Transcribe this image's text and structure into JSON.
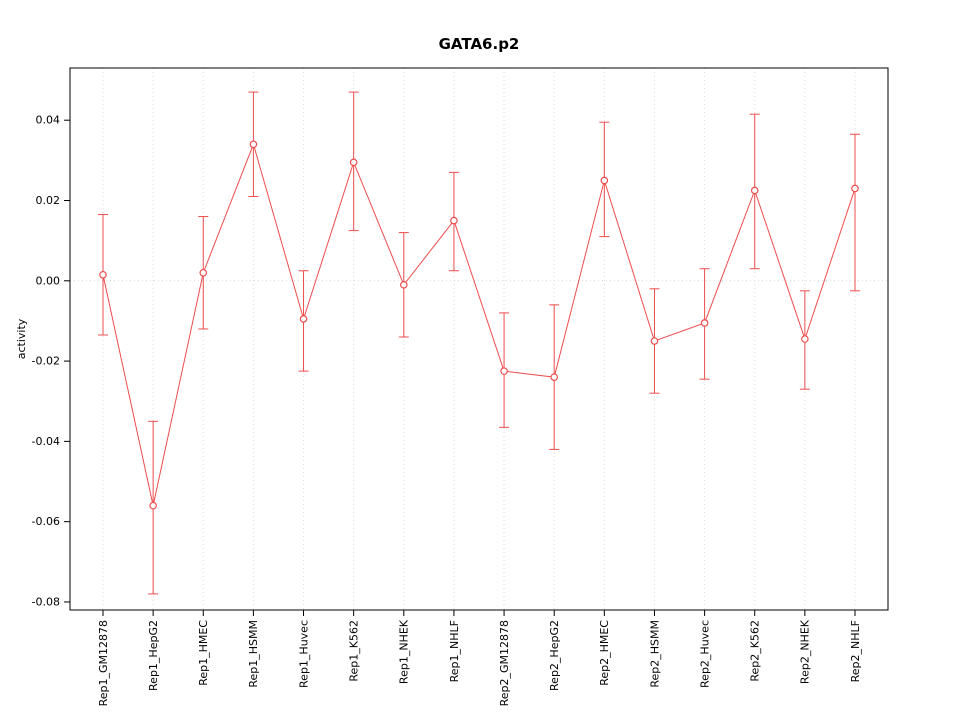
{
  "chart": {
    "title": "GATA6.p2",
    "ylabel": "activity"
  },
  "chart_data": {
    "type": "line",
    "title": "GATA6.p2",
    "xlabel": "",
    "ylabel": "activity",
    "categories": [
      "Rep1_GM12878",
      "Rep1_HepG2",
      "Rep1_HMEC",
      "Rep1_HSMM",
      "Rep1_Huvec",
      "Rep1_K562",
      "Rep1_NHEK",
      "Rep1_NHLF",
      "Rep2_GM12878",
      "Rep2_HepG2",
      "Rep2_HMEC",
      "Rep2_HSMM",
      "Rep2_Huvec",
      "Rep2_K562",
      "Rep2_NHEK",
      "Rep2_NHLF"
    ],
    "values": [
      0.0015,
      -0.056,
      0.002,
      0.034,
      -0.0095,
      0.0295,
      -0.001,
      0.015,
      -0.0225,
      -0.024,
      0.025,
      -0.015,
      -0.0105,
      0.0225,
      -0.0145,
      0.023
    ],
    "error_low": [
      -0.0135,
      -0.078,
      -0.012,
      0.021,
      -0.0225,
      0.0125,
      -0.014,
      0.0025,
      -0.0365,
      -0.042,
      0.011,
      -0.028,
      -0.0245,
      0.003,
      -0.027,
      -0.0025
    ],
    "error_high": [
      0.0165,
      -0.035,
      0.016,
      0.047,
      0.0025,
      0.047,
      0.012,
      0.027,
      -0.008,
      -0.006,
      0.0395,
      -0.002,
      0.003,
      0.0415,
      -0.0025,
      0.0365
    ],
    "ylim": [
      -0.082,
      0.053
    ],
    "yticks": [
      -0.08,
      -0.06,
      -0.04,
      -0.02,
      0.0,
      0.02,
      0.04
    ],
    "grid": true,
    "legend": "none",
    "series_color": "#ee4c4c",
    "grid_color": "#d9d9d9",
    "axis_color": "#000000",
    "zero_line_color": "#d9d9d9"
  }
}
